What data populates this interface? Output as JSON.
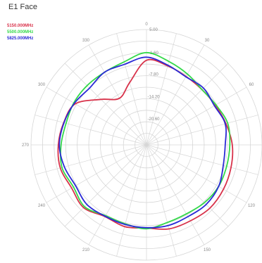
{
  "chart_data": {
    "type": "line",
    "polar": true,
    "title": "E1 Face",
    "radial_ticks": [
      "5.00",
      "-1.60",
      "-7.80",
      "-14.20",
      "-20.60"
    ],
    "angle_ticks": [
      "0",
      "30",
      "60",
      "90",
      "120",
      "150",
      "180",
      "210",
      "240",
      "270",
      "300",
      "330"
    ],
    "theta": [
      0,
      15,
      30,
      45,
      60,
      75,
      90,
      105,
      120,
      135,
      150,
      165,
      180,
      195,
      210,
      225,
      240,
      255,
      270,
      285,
      300,
      315,
      330,
      345
    ],
    "series": [
      {
        "name": "5150.000MHz",
        "color": "#d8324a",
        "r": [
          -3.8,
          -4.6,
          -5.4,
          -5.6,
          -5.3,
          -4.5,
          -3.5,
          -3.0,
          -2.6,
          -2.4,
          -2.9,
          -3.1,
          -4.2,
          -3.8,
          -4.3,
          -2.6,
          -3.3,
          -2.5,
          -2.8,
          -3.5,
          -4.5,
          -9.6,
          -12.6,
          -9.5
        ]
      },
      {
        "name": "5500.000MHz",
        "color": "#33d94a",
        "r": [
          -1.6,
          -3.3,
          -4.6,
          -5.6,
          -5.1,
          -4.0,
          -4.2,
          -4.3,
          -4.2,
          -4.6,
          -5.2,
          -5.0,
          -4.0,
          -4.6,
          -4.6,
          -3.0,
          -3.9,
          -3.0,
          -3.6,
          -4.2,
          -4.0,
          -4.0,
          -4.0,
          -3.4
        ]
      },
      {
        "name": "5825.000MHz",
        "color": "#2a2ad6",
        "r": [
          -2.9,
          -4.4,
          -5.5,
          -5.0,
          -5.6,
          -4.7,
          -5.5,
          -5.3,
          -4.2,
          -3.9,
          -4.3,
          -4.1,
          -4.3,
          -4.4,
          -4.4,
          -3.9,
          -4.6,
          -3.7,
          -3.1,
          -3.6,
          -4.2,
          -5.0,
          -4.0,
          -4.1
        ]
      }
    ]
  }
}
